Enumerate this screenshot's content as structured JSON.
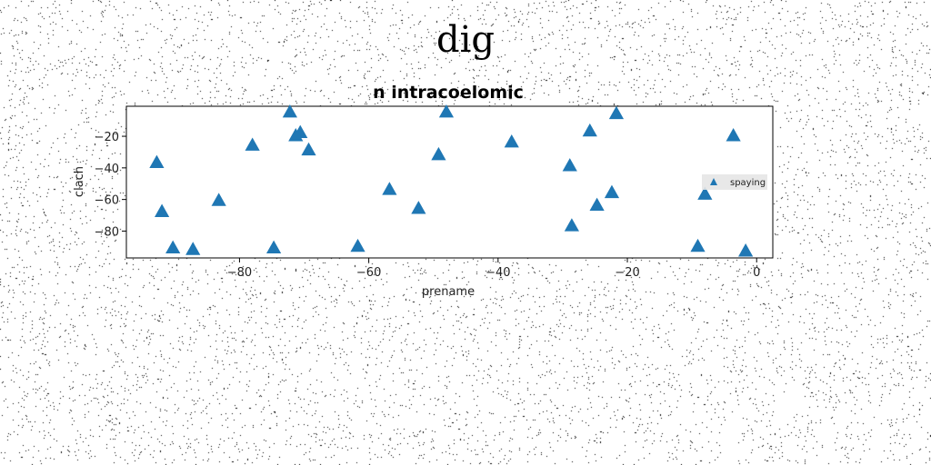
{
  "page": {
    "title": "dig"
  },
  "chart_data": {
    "type": "scatter",
    "title": "n intracoelomic",
    "xlabel": "prename",
    "ylabel": "clach",
    "xlim": [
      -97.5,
      2.5
    ],
    "ylim": [
      -97,
      -1
    ],
    "xticks": [
      -80,
      -60,
      -40,
      -20,
      0
    ],
    "xtick_labels": [
      "−80",
      "−60",
      "−40",
      "−20",
      "0"
    ],
    "yticks": [
      -20,
      -40,
      -60,
      -80
    ],
    "ytick_labels": [
      "−20",
      "−40",
      "−60",
      "−80"
    ],
    "grid": false,
    "legend": {
      "position": "right",
      "visible": true
    },
    "marker": "triangle-up",
    "series": [
      {
        "name": "spaying",
        "color": "#1f77b4",
        "points": [
          {
            "x": -92.8,
            "y": -37
          },
          {
            "x": -92.0,
            "y": -68
          },
          {
            "x": -90.3,
            "y": -91
          },
          {
            "x": -87.2,
            "y": -92
          },
          {
            "x": -83.2,
            "y": -61
          },
          {
            "x": -78.0,
            "y": -26
          },
          {
            "x": -74.7,
            "y": -91
          },
          {
            "x": -72.2,
            "y": -5
          },
          {
            "x": -71.3,
            "y": -20
          },
          {
            "x": -70.6,
            "y": -18
          },
          {
            "x": -69.3,
            "y": -29
          },
          {
            "x": -61.7,
            "y": -90
          },
          {
            "x": -56.8,
            "y": -54
          },
          {
            "x": -52.3,
            "y": -66
          },
          {
            "x": -49.2,
            "y": -32
          },
          {
            "x": -48.0,
            "y": -5
          },
          {
            "x": -37.9,
            "y": -24
          },
          {
            "x": -28.9,
            "y": -39
          },
          {
            "x": -28.6,
            "y": -77
          },
          {
            "x": -25.8,
            "y": -17
          },
          {
            "x": -24.7,
            "y": -64
          },
          {
            "x": -22.4,
            "y": -56
          },
          {
            "x": -21.7,
            "y": -6
          },
          {
            "x": -9.1,
            "y": -90
          },
          {
            "x": -8.0,
            "y": -57
          },
          {
            "x": -3.6,
            "y": -20
          },
          {
            "x": -1.7,
            "y": -93
          }
        ]
      }
    ]
  }
}
